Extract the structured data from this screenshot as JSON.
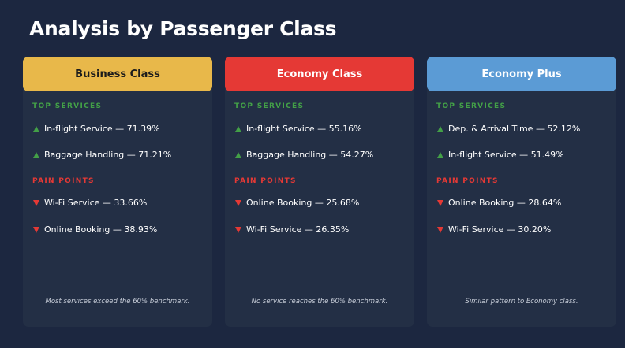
{
  "title": "Analysis by Passenger Class",
  "top_label": "TOP SERVICES",
  "pain_label": "PAIN POINTS",
  "cards": [
    {
      "header": "Business Class",
      "header_bg": "#e8b84a",
      "header_color": "#1c1c1c",
      "top": [
        "In-flight Service — 71.39%",
        "Baggage Handling — 71.21%"
      ],
      "pain": [
        "Wi-Fi Service — 33.66%",
        "Online Booking — 38.93%"
      ],
      "note": "Most services exceed the 60% benchmark."
    },
    {
      "header": "Economy Class",
      "header_bg": "#e53935",
      "header_color": "#ffffff",
      "top": [
        "In-flight Service — 55.16%",
        "Baggage Handling — 54.27%"
      ],
      "pain": [
        "Online Booking — 25.68%",
        "Wi-Fi Service — 26.35%"
      ],
      "note": "No service reaches the 60% benchmark."
    },
    {
      "header": "Economy Plus",
      "header_bg": "#5b9bd5",
      "header_color": "#ffffff",
      "top": [
        "Dep. & Arrival Time — 52.12%",
        "In-flight Service — 51.49%"
      ],
      "pain": [
        "Online Booking — 28.64%",
        "Wi-Fi Service — 30.20%"
      ],
      "note": "Similar pattern to Economy class."
    }
  ]
}
